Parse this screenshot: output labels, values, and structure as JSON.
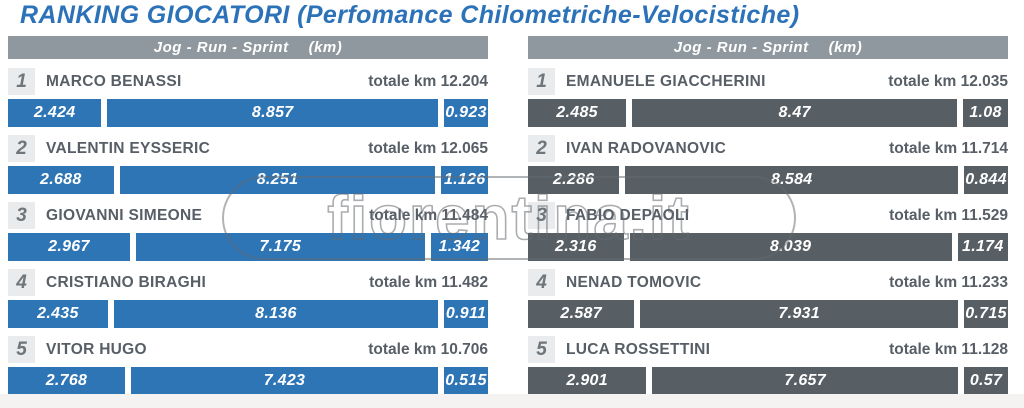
{
  "title": "RANKING GIOCATORI (Perfomance Chilometriche-Velocistiche)",
  "watermark": "fiorentina.it",
  "colors": {
    "title_blue": "#2c72b8",
    "bar_blue": "#2e75b6",
    "bar_gray": "#575e64",
    "header_gray": "#8e989e",
    "rank_badge_bg": "#e9ebec",
    "text_gray": "#575e66"
  },
  "columns": [
    {
      "id": "left",
      "header": {
        "metrics": "Jog  -  Run  -  Sprint",
        "unit": "(km)"
      },
      "bar_color": "#2e75b6",
      "players": [
        {
          "rank": "1",
          "name": "MARCO BENASSI",
          "total": "totale km 12.204",
          "segments": [
            {
              "label": "2.424",
              "value": 2.424
            },
            {
              "label": "8.857",
              "value": 8.857
            },
            {
              "label": "0.923",
              "value": 0.923
            }
          ]
        },
        {
          "rank": "2",
          "name": "VALENTIN EYSSERIC",
          "total": "totale km 12.065",
          "segments": [
            {
              "label": "2.688",
              "value": 2.688
            },
            {
              "label": "8.251",
              "value": 8.251
            },
            {
              "label": "1.126",
              "value": 1.126
            }
          ]
        },
        {
          "rank": "3",
          "name": "GIOVANNI SIMEONE",
          "total": "totale km 11.484",
          "segments": [
            {
              "label": "2.967",
              "value": 2.967
            },
            {
              "label": "7.175",
              "value": 7.175
            },
            {
              "label": "1.342",
              "value": 1.342
            }
          ]
        },
        {
          "rank": "4",
          "name": "CRISTIANO BIRAGHI",
          "total": "totale km 11.482",
          "segments": [
            {
              "label": "2.435",
              "value": 2.435
            },
            {
              "label": "8.136",
              "value": 8.136
            },
            {
              "label": "0.911",
              "value": 0.911
            }
          ]
        },
        {
          "rank": "5",
          "name": "VITOR HUGO",
          "total": "totale km 10.706",
          "segments": [
            {
              "label": "2.768",
              "value": 2.768
            },
            {
              "label": "7.423",
              "value": 7.423
            },
            {
              "label": "0.515",
              "value": 0.515
            }
          ]
        }
      ]
    },
    {
      "id": "right",
      "header": {
        "metrics": "Jog  -  Run  -  Sprint",
        "unit": "(km)"
      },
      "bar_color": "#575e64",
      "players": [
        {
          "rank": "1",
          "name": "EMANUELE GIACCHERINI",
          "total": "totale km 12.035",
          "segments": [
            {
              "label": "2.485",
              "value": 2.485
            },
            {
              "label": "8.47",
              "value": 8.47
            },
            {
              "label": "1.08",
              "value": 1.08
            }
          ]
        },
        {
          "rank": "2",
          "name": "IVAN RADOVANOVIC",
          "total": "totale km 11.714",
          "segments": [
            {
              "label": "2.286",
              "value": 2.286
            },
            {
              "label": "8.584",
              "value": 8.584
            },
            {
              "label": "0.844",
              "value": 0.844
            }
          ]
        },
        {
          "rank": "3",
          "name": "FABIO DEPAOLI",
          "total": "totale km 11.529",
          "segments": [
            {
              "label": "2.316",
              "value": 2.316
            },
            {
              "label": "8.039",
              "value": 8.039
            },
            {
              "label": "1.174",
              "value": 1.174
            }
          ]
        },
        {
          "rank": "4",
          "name": "NENAD TOMOVIC",
          "total": "totale km 11.233",
          "segments": [
            {
              "label": "2.587",
              "value": 2.587
            },
            {
              "label": "7.931",
              "value": 7.931
            },
            {
              "label": "0.715",
              "value": 0.715
            }
          ]
        },
        {
          "rank": "5",
          "name": "LUCA ROSSETTINI",
          "total": "totale km 11.128",
          "segments": [
            {
              "label": "2.901",
              "value": 2.901
            },
            {
              "label": "7.657",
              "value": 7.657
            },
            {
              "label": "0.57",
              "value": 0.57
            }
          ]
        }
      ]
    }
  ],
  "chart_data": [
    {
      "type": "bar",
      "orientation": "horizontal",
      "stacked": true,
      "title": "Jog - Run - Sprint (km) — left group",
      "categories": [
        "MARCO BENASSI",
        "VALENTIN EYSSERIC",
        "GIOVANNI SIMEONE",
        "CRISTIANO BIRAGHI",
        "VITOR HUGO"
      ],
      "series": [
        {
          "name": "Jog",
          "values": [
            2.424,
            2.688,
            2.967,
            2.435,
            2.768
          ]
        },
        {
          "name": "Run",
          "values": [
            8.857,
            8.251,
            7.175,
            8.136,
            7.423
          ]
        },
        {
          "name": "Sprint",
          "values": [
            0.923,
            1.126,
            1.342,
            0.911,
            0.515
          ]
        }
      ],
      "totals": [
        12.204,
        12.065,
        11.484,
        11.482,
        10.706
      ],
      "unit": "km"
    },
    {
      "type": "bar",
      "orientation": "horizontal",
      "stacked": true,
      "title": "Jog - Run - Sprint (km) — right group",
      "categories": [
        "EMANUELE GIACCHERINI",
        "IVAN RADOVANOVIC",
        "FABIO DEPAOLI",
        "NENAD TOMOVIC",
        "LUCA ROSSETTINI"
      ],
      "series": [
        {
          "name": "Jog",
          "values": [
            2.485,
            2.286,
            2.316,
            2.587,
            2.901
          ]
        },
        {
          "name": "Run",
          "values": [
            8.47,
            8.584,
            8.039,
            7.931,
            7.657
          ]
        },
        {
          "name": "Sprint",
          "values": [
            1.08,
            0.844,
            1.174,
            0.715,
            0.57
          ]
        }
      ],
      "totals": [
        12.035,
        11.714,
        11.529,
        11.233,
        11.128
      ],
      "unit": "km"
    }
  ]
}
